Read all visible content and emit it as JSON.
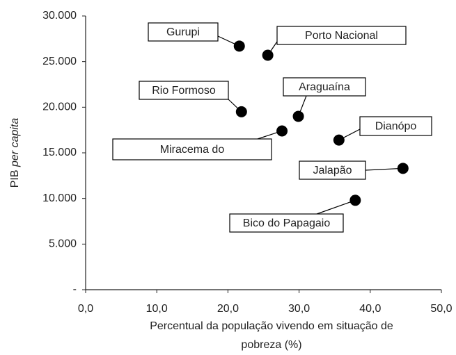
{
  "chart_data": {
    "type": "scatter",
    "xlabel": [
      "Percentual da população vivendo em situação de",
      "pobreza  (%)"
    ],
    "ylabel": [
      "PIB",
      "per capita"
    ],
    "xlim": [
      0,
      50
    ],
    "xticks": [
      {
        "value": 0,
        "label": "0,0"
      },
      {
        "value": 10,
        "label": "10,0"
      },
      {
        "value": 20,
        "label": "20,0"
      },
      {
        "value": 30,
        "label": "30,0"
      },
      {
        "value": 40,
        "label": "40,0"
      },
      {
        "value": 50,
        "label": "50,0"
      }
    ],
    "ylim": [
      0,
      30000
    ],
    "yticks": [
      {
        "value": 0,
        "label": "-"
      },
      {
        "value": 5000,
        "label": "5.000"
      },
      {
        "value": 10000,
        "label": "10.000"
      },
      {
        "value": 15000,
        "label": "15.000"
      },
      {
        "value": 20000,
        "label": "20.000"
      },
      {
        "value": 25000,
        "label": "25.000"
      },
      {
        "value": 30000,
        "label": "30.000"
      }
    ],
    "color": "#000000",
    "labels": [
      "Gurupi",
      "Porto Nacional",
      "Rio Formoso",
      "Araguaína",
      "Miracema do",
      "Dianópo",
      "Jalapão",
      "Bico do Papagaio"
    ],
    "x": [
      21.6,
      25.6,
      21.9,
      29.9,
      27.6,
      35.6,
      44.6,
      37.9
    ],
    "y": [
      26700,
      25700,
      19500,
      19000,
      17400,
      16400,
      13300,
      9800
    ]
  }
}
